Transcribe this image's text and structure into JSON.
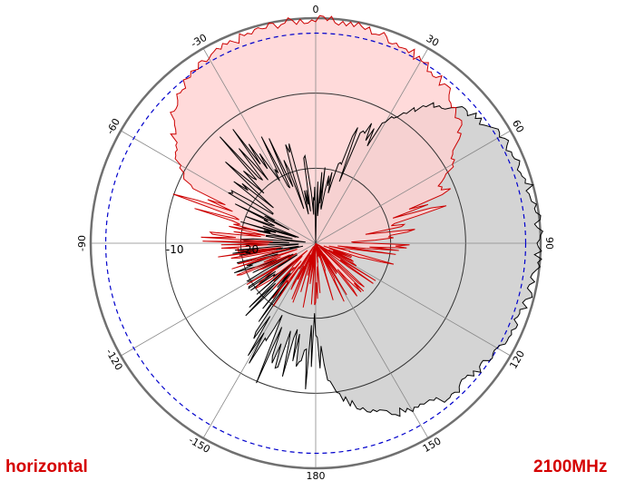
{
  "chart_data": {
    "type": "polar-line",
    "mode_label": "horizontal",
    "frequency_label": "2100MHz",
    "angle_tick_labels": [
      "0",
      "30",
      "60",
      "90",
      "120",
      "150",
      "180",
      "-150",
      "-120",
      "-90",
      "-60",
      "-30"
    ],
    "radial_tick_labels": [
      "-10",
      "-20"
    ],
    "radial_range_db": [
      -30,
      0
    ],
    "reference_level_db": -2,
    "grid": true,
    "colors": {
      "copolar_line": "#cc0000",
      "copolar_fill": "#ffd0d0",
      "crosspolar_line": "#000000",
      "crosspolar_fill": "#d4d4d4",
      "reference": "#0000cc",
      "grid": "#888888",
      "outer": "#707070"
    },
    "series": [
      {
        "angles_deg": [
          -180,
          -150,
          -120,
          -100,
          -90,
          -80,
          -70,
          -60,
          -50,
          -40,
          -30,
          -20,
          -10,
          0,
          10,
          20,
          30,
          40,
          50,
          60,
          70,
          80,
          90,
          100,
          120,
          150
        ],
        "values_db": [
          -26,
          -25,
          -24,
          -22,
          -20,
          -18,
          -14,
          -9,
          -5,
          -2.5,
          -1.5,
          -0.8,
          -0.3,
          -0.2,
          -0.4,
          -1,
          -1.8,
          -3,
          -5,
          -9,
          -14,
          -19,
          -21,
          -23,
          -25,
          -26
        ]
      },
      {
        "angles_deg": [
          -180,
          -170,
          -160,
          -150,
          -140,
          -120,
          -90,
          -70,
          -60,
          -50,
          -40,
          -30,
          -20,
          -10,
          0,
          10,
          20,
          30,
          40,
          50,
          60,
          70,
          80,
          90,
          100,
          110,
          120,
          130,
          140,
          150,
          160,
          170
        ],
        "values_db": [
          -16,
          -14,
          -13,
          -17,
          -21,
          -23,
          -24,
          -23,
          -21,
          -18,
          -15,
          -17,
          -20,
          -22,
          -26,
          -24,
          -17,
          -11,
          -6,
          -3,
          -1.6,
          -0.8,
          -0.3,
          -0.2,
          -0.6,
          -1.2,
          -2,
          -2.6,
          -3.2,
          -4.2,
          -6,
          -9
        ]
      }
    ]
  }
}
